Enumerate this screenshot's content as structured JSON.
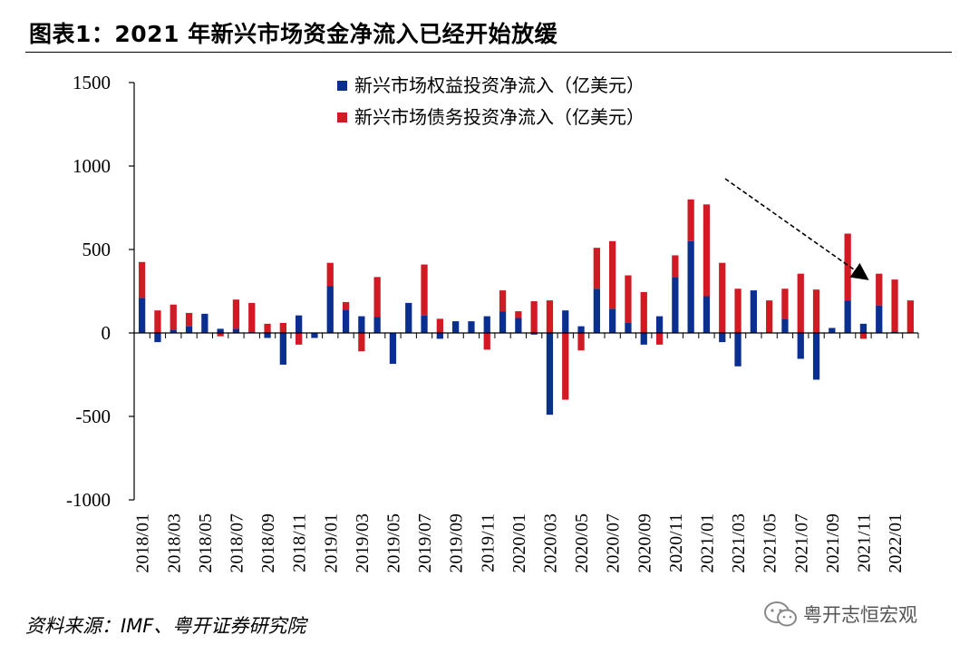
{
  "title": "图表1：2021 年新兴市场资金净流入已经开始放缓",
  "source": "资料来源：IMF、粤开证券研究院",
  "watermark": "粤开志恒宏观",
  "chart_data": {
    "type": "bar",
    "stacked": true,
    "categories": [
      "2018/01",
      "2018/02",
      "2018/03",
      "2018/04",
      "2018/05",
      "2018/06",
      "2018/07",
      "2018/08",
      "2018/09",
      "2018/10",
      "2018/11",
      "2018/12",
      "2019/01",
      "2019/02",
      "2019/03",
      "2019/04",
      "2019/05",
      "2019/06",
      "2019/07",
      "2019/08",
      "2019/09",
      "2019/10",
      "2019/11",
      "2019/12",
      "2020/01",
      "2020/02",
      "2020/03",
      "2020/04",
      "2020/05",
      "2020/06",
      "2020/07",
      "2020/08",
      "2020/09",
      "2020/10",
      "2020/11",
      "2020/12",
      "2021/01",
      "2021/02",
      "2021/03",
      "2021/04",
      "2021/05",
      "2021/06",
      "2021/07",
      "2021/08",
      "2021/09",
      "2021/10",
      "2021/11",
      "2021/12",
      "2022/01",
      "2022/02"
    ],
    "x_tick_labels": [
      "2018/01",
      "2018/03",
      "2018/05",
      "2018/07",
      "2018/09",
      "2018/11",
      "2019/01",
      "2019/03",
      "2019/05",
      "2019/07",
      "2019/09",
      "2019/11",
      "2020/01",
      "2020/03",
      "2020/05",
      "2020/07",
      "2020/09",
      "2020/11",
      "2021/01",
      "2021/03",
      "2021/05",
      "2021/07",
      "2021/09",
      "2021/11",
      "2022/01"
    ],
    "series": [
      {
        "name": "新兴市场权益投资净流入（亿美元）",
        "color": "#0a2f8f",
        "values": [
          210,
          -55,
          20,
          40,
          115,
          25,
          25,
          5,
          -30,
          -190,
          105,
          -30,
          280,
          140,
          100,
          95,
          -185,
          180,
          105,
          -35,
          70,
          70,
          100,
          130,
          90,
          -10,
          -490,
          135,
          40,
          265,
          145,
          60,
          -70,
          100,
          335,
          550,
          220,
          -55,
          -200,
          255,
          0,
          85,
          -155,
          -280,
          30,
          195,
          55,
          165,
          10,
          0
        ]
      },
      {
        "name": "新兴市场债务投资净流入（亿美元）",
        "color": "#d11a24",
        "values": [
          215,
          135,
          150,
          80,
          0,
          -20,
          175,
          175,
          55,
          60,
          -70,
          0,
          140,
          45,
          -110,
          240,
          0,
          0,
          305,
          85,
          0,
          0,
          -100,
          125,
          40,
          190,
          195,
          -400,
          -105,
          245,
          405,
          285,
          245,
          -70,
          130,
          250,
          550,
          420,
          265,
          0,
          195,
          180,
          355,
          260,
          0,
          400,
          -35,
          190,
          310,
          195
        ]
      }
    ],
    "ylim": [
      -1000,
      1500
    ],
    "yticks": [
      1500,
      1000,
      500,
      0,
      -500,
      -1000
    ],
    "annotation": "dashed arrow pointing down-right toward late-2021 bars"
  }
}
